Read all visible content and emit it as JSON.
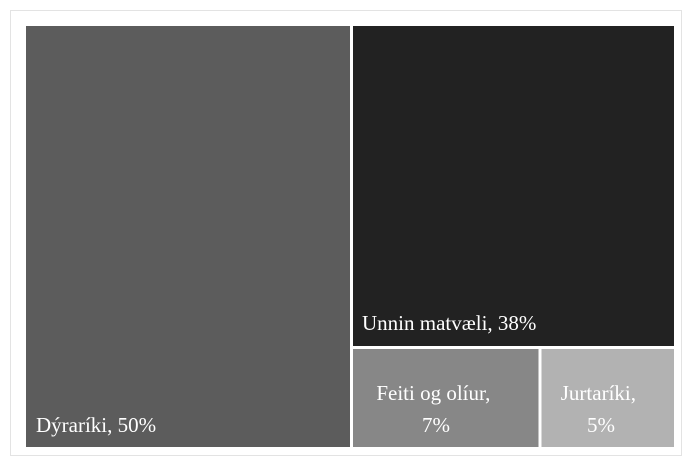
{
  "chart_data": {
    "type": "treemap",
    "title": "",
    "segments": [
      {
        "label": "Dýraríki",
        "value": 50,
        "display": "Dýraríki, 50%",
        "color": "#5c5c5c"
      },
      {
        "label": "Unnin matvæli",
        "value": 38,
        "display": "Unnin matvæli, 38%",
        "color": "#222222"
      },
      {
        "label": "Feiti og olíur",
        "value": 7,
        "display_lines": [
          "Feiti og olíur,",
          "7%"
        ],
        "color": "#878787"
      },
      {
        "label": "Jurtaríki",
        "value": 5,
        "display_lines": [
          "Jurtaríki,",
          "5%"
        ],
        "color": "#b2b2b2"
      }
    ]
  }
}
